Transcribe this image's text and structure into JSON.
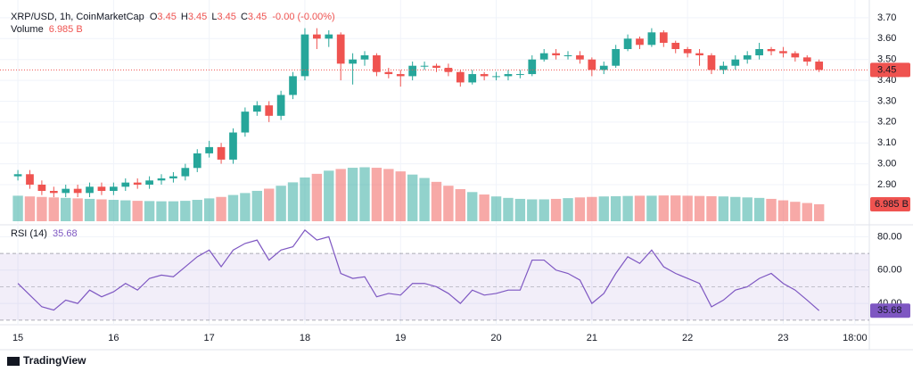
{
  "chart_data": {
    "type": "candlestick",
    "title": "XRP/USD, 1h, CoinMarketCap",
    "ohlc_legend": [
      {
        "label": "O",
        "value": 3.45
      },
      {
        "label": "H",
        "value": 3.45
      },
      {
        "label": "L",
        "value": 3.45
      },
      {
        "label": "C",
        "value": 3.45
      }
    ],
    "change_label": "-0.00 (-0.00%)",
    "up_color": "#26a69a",
    "down_color": "#ef5350",
    "x": [
      0,
      3,
      6,
      9,
      12,
      15,
      18,
      21,
      24,
      27,
      30,
      33,
      36,
      39,
      42,
      45,
      48,
      51,
      54,
      57,
      60,
      63,
      66,
      69,
      72,
      75,
      78,
      81,
      84,
      87,
      90,
      93,
      96,
      99,
      102,
      105,
      108,
      111,
      114,
      117,
      120,
      123,
      126,
      129,
      132,
      135,
      138,
      141,
      144,
      147,
      150,
      153,
      156,
      159,
      162,
      165,
      168,
      171,
      174,
      177,
      180,
      183,
      186,
      189,
      192,
      195,
      198,
      201
    ],
    "open": [
      2.94,
      2.95,
      2.9,
      2.87,
      2.86,
      2.88,
      2.86,
      2.89,
      2.87,
      2.89,
      2.91,
      2.9,
      2.92,
      2.93,
      2.94,
      2.98,
      3.05,
      3.08,
      3.02,
      3.15,
      3.25,
      3.28,
      3.23,
      3.33,
      3.42,
      3.62,
      3.6,
      3.62,
      3.48,
      3.5,
      3.52,
      3.44,
      3.43,
      3.42,
      3.47,
      3.47,
      3.46,
      3.44,
      3.39,
      3.43,
      3.42,
      3.42,
      3.43,
      3.43,
      3.5,
      3.53,
      3.52,
      3.52,
      3.5,
      3.45,
      3.47,
      3.55,
      3.6,
      3.57,
      3.63,
      3.58,
      3.55,
      3.53,
      3.52,
      3.45,
      3.47,
      3.5,
      3.52,
      3.55,
      3.54,
      3.53,
      3.51,
      3.49
    ],
    "high": [
      2.97,
      2.97,
      2.92,
      2.89,
      2.9,
      2.9,
      2.91,
      2.91,
      2.91,
      2.93,
      2.93,
      2.94,
      2.95,
      2.96,
      3.0,
      3.07,
      3.11,
      3.1,
      3.17,
      3.27,
      3.3,
      3.3,
      3.35,
      3.44,
      3.65,
      3.65,
      3.64,
      3.63,
      3.53,
      3.54,
      3.53,
      3.46,
      3.45,
      3.49,
      3.49,
      3.48,
      3.48,
      3.45,
      3.45,
      3.44,
      3.44,
      3.45,
      3.45,
      3.52,
      3.55,
      3.55,
      3.54,
      3.54,
      3.51,
      3.49,
      3.57,
      3.62,
      3.61,
      3.65,
      3.64,
      3.59,
      3.56,
      3.55,
      3.53,
      3.49,
      3.52,
      3.54,
      3.58,
      3.56,
      3.56,
      3.54,
      3.52,
      3.5
    ],
    "low": [
      2.92,
      2.88,
      2.85,
      2.84,
      2.84,
      2.84,
      2.84,
      2.85,
      2.85,
      2.87,
      2.88,
      2.88,
      2.9,
      2.91,
      2.92,
      2.96,
      3.03,
      3.0,
      3.0,
      3.13,
      3.23,
      3.2,
      3.21,
      3.31,
      3.4,
      3.55,
      3.56,
      3.4,
      3.38,
      3.47,
      3.42,
      3.41,
      3.37,
      3.4,
      3.45,
      3.44,
      3.42,
      3.37,
      3.38,
      3.4,
      3.4,
      3.4,
      3.41,
      3.42,
      3.49,
      3.5,
      3.5,
      3.48,
      3.42,
      3.43,
      3.46,
      3.54,
      3.55,
      3.56,
      3.56,
      3.53,
      3.51,
      3.47,
      3.43,
      3.43,
      3.45,
      3.48,
      3.5,
      3.52,
      3.51,
      3.49,
      3.47,
      3.44
    ],
    "close": [
      2.95,
      2.9,
      2.87,
      2.86,
      2.88,
      2.86,
      2.89,
      2.87,
      2.89,
      2.91,
      2.9,
      2.92,
      2.93,
      2.94,
      2.98,
      3.05,
      3.08,
      3.02,
      3.15,
      3.25,
      3.28,
      3.23,
      3.33,
      3.42,
      3.62,
      3.6,
      3.62,
      3.48,
      3.5,
      3.52,
      3.44,
      3.43,
      3.42,
      3.47,
      3.47,
      3.46,
      3.44,
      3.39,
      3.43,
      3.42,
      3.42,
      3.43,
      3.43,
      3.5,
      3.53,
      3.52,
      3.52,
      3.5,
      3.45,
      3.47,
      3.55,
      3.6,
      3.57,
      3.63,
      3.58,
      3.55,
      3.53,
      3.52,
      3.45,
      3.47,
      3.5,
      3.52,
      3.55,
      3.54,
      3.53,
      3.51,
      3.49,
      3.45
    ],
    "xlim": [
      -2.7,
      213.6
    ],
    "xticks": [
      {
        "value": 0,
        "label": "15"
      },
      {
        "value": 24,
        "label": "16"
      },
      {
        "value": 48,
        "label": "17"
      },
      {
        "value": 72,
        "label": "18"
      },
      {
        "value": 96,
        "label": "19"
      },
      {
        "value": 120,
        "label": "20"
      },
      {
        "value": 144,
        "label": "21"
      },
      {
        "value": 168,
        "label": "22"
      },
      {
        "value": 192,
        "label": "23"
      },
      {
        "value": 210,
        "label": "18:00"
      }
    ],
    "ylim": [
      2.716,
      3.751
    ],
    "yticks": [
      {
        "value": 2.9,
        "label": "2.90"
      },
      {
        "value": 3.0,
        "label": "3.00"
      },
      {
        "value": 3.1,
        "label": "3.10"
      },
      {
        "value": 3.2,
        "label": "3.20"
      },
      {
        "value": 3.3,
        "label": "3.30"
      },
      {
        "value": 3.4,
        "label": "3.40"
      },
      {
        "value": 3.5,
        "label": "3.50"
      },
      {
        "value": 3.6,
        "label": "3.60"
      },
      {
        "value": 3.7,
        "label": "3.70"
      }
    ],
    "volume": {
      "name": "Volume",
      "last_label": "6.985 B",
      "ylim": [
        0,
        80
      ],
      "values": [
        10.5,
        10.2,
        10.0,
        9.8,
        9.6,
        9.4,
        9.2,
        9.0,
        8.8,
        8.6,
        8.4,
        8.3,
        8.2,
        8.2,
        8.4,
        8.8,
        9.4,
        10.0,
        10.8,
        11.6,
        12.5,
        13.4,
        14.6,
        16.0,
        18.0,
        19.5,
        20.8,
        21.5,
        22.0,
        22.2,
        22.0,
        21.5,
        20.5,
        19.2,
        17.8,
        16.2,
        14.6,
        13.2,
        12.0,
        11.0,
        10.2,
        9.6,
        9.2,
        9.0,
        9.0,
        9.2,
        9.5,
        9.8,
        10.0,
        10.2,
        10.3,
        10.4,
        10.5,
        10.5,
        10.6,
        10.6,
        10.5,
        10.4,
        10.3,
        10.2,
        10.0,
        9.8,
        9.6,
        9.2,
        8.6,
        8.0,
        7.5,
        6.985
      ]
    },
    "rsi": {
      "name": "RSI (14)",
      "color": "#7e57c2",
      "ylim": [
        28.3,
        86.1
      ],
      "band": [
        30,
        70
      ],
      "mid": 50,
      "yticks": [
        {
          "value": 40,
          "label": "40.00"
        },
        {
          "value": 60,
          "label": "60.00"
        },
        {
          "value": 80,
          "label": "80.00"
        }
      ],
      "values": [
        52,
        45,
        38,
        36,
        42,
        40,
        48,
        44,
        47,
        52,
        48,
        55,
        57,
        56,
        62,
        68,
        72,
        62,
        72,
        76,
        78,
        66,
        72,
        74,
        84,
        78,
        80,
        58,
        55,
        56,
        44,
        46,
        45,
        52,
        52,
        50,
        46,
        40,
        48,
        45,
        46,
        48,
        48,
        66,
        66,
        60,
        58,
        54,
        40,
        46,
        58,
        68,
        64,
        72,
        62,
        58,
        55,
        52,
        38,
        42,
        48,
        50,
        55,
        58,
        52,
        48,
        42,
        35.68
      ]
    },
    "brand": "TradingView"
  }
}
